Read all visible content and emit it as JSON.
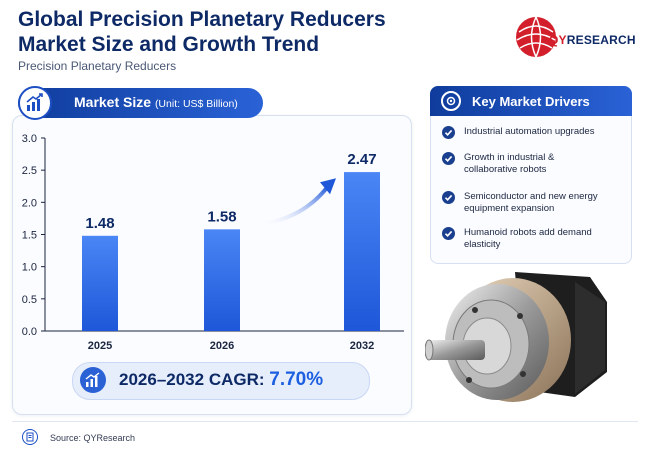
{
  "header": {
    "title_line1": "Global Precision Planetary Reducers",
    "title_line2": "Market Size and Growth Trend",
    "subtitle": "Precision Planetary Reducers"
  },
  "logo": {
    "part1": "QY",
    "part2": "RESEARCH"
  },
  "market_size": {
    "label": "Market Size",
    "unit": "(Unit: US$ Billion)"
  },
  "cagr": {
    "label": "2026–2032 CAGR:",
    "value": "7.70%"
  },
  "drivers": {
    "title": "Key Market Drivers",
    "items": [
      "Industrial automation upgrades",
      "Growth in industrial & collaborative robots",
      "Semiconductor and new energy equipment expansion",
      "Humanoid robots add demand elasticity"
    ]
  },
  "footer": {
    "source": "Source: QYResearch"
  },
  "colors": {
    "primary": "#0e2a66",
    "accent": "#2a62d6",
    "bar": "#3a78ee",
    "logo_red": "#d21f2b"
  },
  "chart_data": {
    "type": "bar",
    "categories": [
      "2025",
      "2026",
      "2032"
    ],
    "values": [
      1.48,
      1.58,
      2.47
    ],
    "value_labels": [
      "1.48",
      "1.58",
      "2.47"
    ],
    "ylim": [
      0,
      3.0
    ],
    "yticks": [
      0.0,
      0.5,
      1.0,
      1.5,
      2.0,
      2.5,
      3.0
    ],
    "ytick_labels": [
      "0.0",
      "0.5",
      "1.0",
      "1.5",
      "2.0",
      "2.5",
      "3.0"
    ],
    "grid": false,
    "annotation": "growth arrow from 2026 toward 2032"
  }
}
